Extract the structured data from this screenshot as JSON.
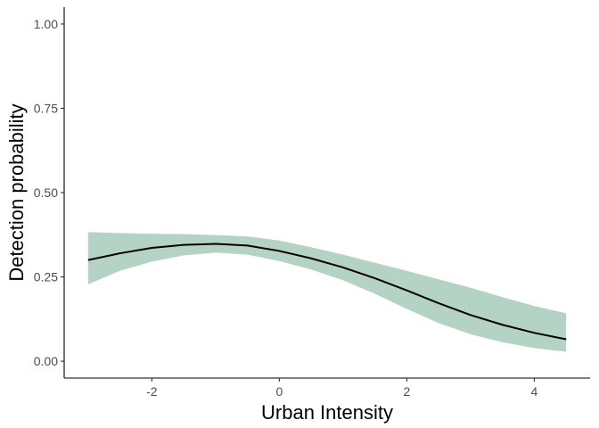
{
  "chart_data": {
    "type": "line",
    "xlabel": "Urban Intensity",
    "ylabel": "Detection probability",
    "xlim": [
      -3.375,
      4.875
    ],
    "ylim": [
      -0.05,
      1.05
    ],
    "x_ticks": [
      -2,
      0,
      2,
      4
    ],
    "x_tick_labels": [
      "-2",
      "0",
      "2",
      "4"
    ],
    "y_ticks": [
      0,
      0.25,
      0.5,
      0.75,
      1
    ],
    "y_tick_labels": [
      "0.00",
      "0.25",
      "0.50",
      "0.75",
      "1.00"
    ],
    "grid": false,
    "legend": "none",
    "series": [
      {
        "x": [
          -3.0,
          -2.5,
          -2.0,
          -1.5,
          -1.0,
          -0.5,
          0.0,
          0.5,
          1.0,
          1.5,
          2.0,
          2.5,
          3.0,
          3.5,
          4.0,
          4.5
        ],
        "y": [
          0.3,
          0.32,
          0.336,
          0.345,
          0.348,
          0.343,
          0.327,
          0.305,
          0.278,
          0.246,
          0.21,
          0.172,
          0.137,
          0.108,
          0.084,
          0.065
        ],
        "lower": [
          0.228,
          0.268,
          0.295,
          0.314,
          0.322,
          0.316,
          0.297,
          0.272,
          0.24,
          0.2,
          0.155,
          0.113,
          0.08,
          0.056,
          0.039,
          0.028
        ],
        "upper": [
          0.383,
          0.38,
          0.378,
          0.377,
          0.374,
          0.37,
          0.358,
          0.338,
          0.316,
          0.292,
          0.268,
          0.243,
          0.218,
          0.19,
          0.164,
          0.142
        ]
      }
    ],
    "colors": {
      "ribbon": "#b5d3c5",
      "line": "#000000",
      "axis": "#000000"
    }
  }
}
